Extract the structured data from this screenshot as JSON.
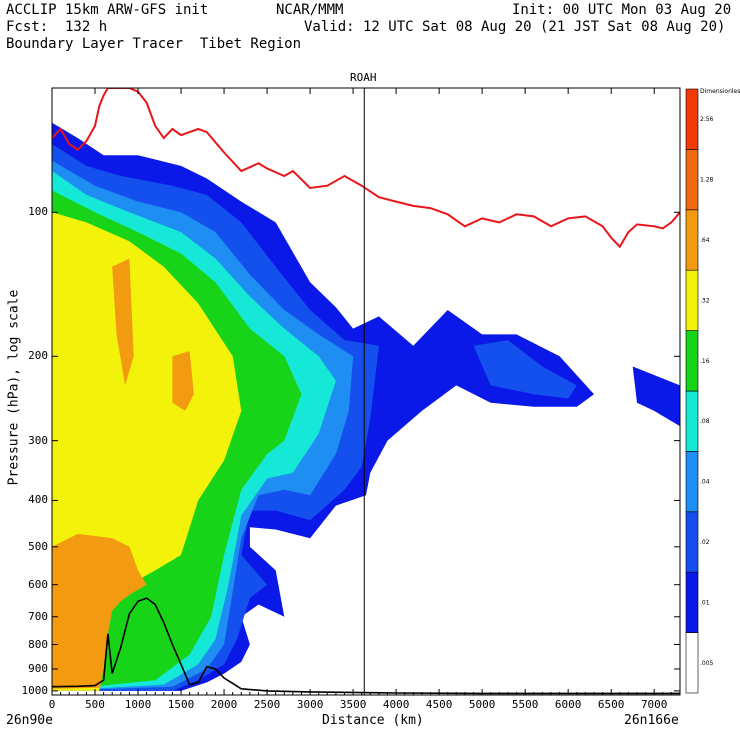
{
  "header": {
    "model": "ACCLIP 15km ARW-GFS init",
    "org": "NCAR/MMM",
    "init": "Init: 00 UTC Mon 03 Aug 20",
    "fcst": "Fcst:  132 h",
    "valid": "Valid: 12 UTC Sat 08 Aug 20 (21 JST Sat 08 Aug 20)",
    "product": "Boundary Layer Tracer  Tibet Region"
  },
  "chart_data": {
    "type": "heatmap",
    "title": "ROAH",
    "xlabel": "Distance (km)",
    "ylabel": "Pressure (hPa), log scale",
    "x_range": [
      0,
      7300
    ],
    "y_range": [
      1020,
      55
    ],
    "y_scale": "log",
    "x_ticks": [
      0,
      500,
      1000,
      1500,
      2000,
      2500,
      3000,
      3500,
      4000,
      4500,
      5000,
      5500,
      6000,
      6500,
      7000
    ],
    "y_ticks": [
      100,
      200,
      300,
      400,
      500,
      600,
      700,
      800,
      900,
      1000
    ],
    "x_start_label": "26n90e",
    "x_end_label": "26n166e",
    "vertical_line_km": 3630,
    "colorbar": {
      "title": "Dimensionless",
      "labels": [
        ".005",
        ".01",
        ".02",
        ".04",
        ".08",
        ".16",
        ".32",
        ".64",
        "1.28",
        "2.56"
      ],
      "colors": [
        "#ffffff",
        "#0a18e8",
        "#1450ee",
        "#1e8ef2",
        "#16e8d8",
        "#18d418",
        "#f2f20a",
        "#f29a10",
        "#f26a10",
        "#f23a06"
      ]
    },
    "tropopause_line": {
      "color": "#e8161a",
      "points": [
        [
          0,
          70
        ],
        [
          100,
          67
        ],
        [
          200,
          72
        ],
        [
          300,
          74
        ],
        [
          400,
          71
        ],
        [
          500,
          66
        ],
        [
          550,
          60
        ],
        [
          600,
          57
        ],
        [
          650,
          55
        ],
        [
          700,
          55
        ],
        [
          800,
          55
        ],
        [
          900,
          55
        ],
        [
          1000,
          56
        ],
        [
          1100,
          59
        ],
        [
          1200,
          66
        ],
        [
          1300,
          70
        ],
        [
          1400,
          67
        ],
        [
          1500,
          69
        ],
        [
          1600,
          68
        ],
        [
          1700,
          67
        ],
        [
          1800,
          68
        ],
        [
          2000,
          75
        ],
        [
          2200,
          82
        ],
        [
          2400,
          79
        ],
        [
          2500,
          81
        ],
        [
          2700,
          84
        ],
        [
          2800,
          82
        ],
        [
          3000,
          89
        ],
        [
          3200,
          88
        ],
        [
          3400,
          84
        ],
        [
          3600,
          88
        ],
        [
          3800,
          93
        ],
        [
          4000,
          95
        ],
        [
          4200,
          97
        ],
        [
          4400,
          98
        ],
        [
          4600,
          101
        ],
        [
          4800,
          107
        ],
        [
          5000,
          103
        ],
        [
          5200,
          105
        ],
        [
          5400,
          101
        ],
        [
          5600,
          102
        ],
        [
          5800,
          107
        ],
        [
          6000,
          103
        ],
        [
          6200,
          102
        ],
        [
          6400,
          107
        ],
        [
          6500,
          113
        ],
        [
          6600,
          118
        ],
        [
          6700,
          110
        ],
        [
          6800,
          106
        ],
        [
          7000,
          107
        ],
        [
          7100,
          108
        ],
        [
          7200,
          105
        ],
        [
          7300,
          100
        ]
      ]
    },
    "terrain_line": {
      "color": "#000000",
      "points": [
        [
          0,
          980
        ],
        [
          300,
          978
        ],
        [
          500,
          975
        ],
        [
          600,
          950
        ],
        [
          650,
          760
        ],
        [
          700,
          920
        ],
        [
          800,
          810
        ],
        [
          900,
          690
        ],
        [
          1000,
          650
        ],
        [
          1100,
          640
        ],
        [
          1200,
          660
        ],
        [
          1300,
          720
        ],
        [
          1400,
          800
        ],
        [
          1500,
          880
        ],
        [
          1600,
          970
        ],
        [
          1700,
          960
        ],
        [
          1800,
          890
        ],
        [
          1900,
          900
        ],
        [
          2000,
          940
        ],
        [
          2200,
          990
        ],
        [
          2500,
          1000
        ],
        [
          3000,
          1005
        ],
        [
          4000,
          1010
        ],
        [
          5000,
          1012
        ],
        [
          6000,
          1012
        ],
        [
          7300,
          1012
        ]
      ]
    },
    "tracer_regions": [
      {
        "level": 1,
        "pts": [
          [
            0,
            1000
          ],
          [
            0,
            65
          ],
          [
            300,
            70
          ],
          [
            600,
            76
          ],
          [
            1000,
            76
          ],
          [
            1500,
            80
          ],
          [
            1800,
            85
          ],
          [
            2200,
            95
          ],
          [
            2600,
            105
          ],
          [
            3000,
            140
          ],
          [
            3300,
            158
          ],
          [
            3500,
            175
          ],
          [
            3800,
            165
          ],
          [
            4200,
            190
          ],
          [
            4600,
            160
          ],
          [
            5000,
            180
          ],
          [
            5400,
            180
          ],
          [
            5900,
            200
          ],
          [
            6300,
            240
          ],
          [
            6100,
            255
          ],
          [
            5600,
            255
          ],
          [
            5100,
            250
          ],
          [
            4700,
            230
          ],
          [
            4300,
            260
          ],
          [
            3900,
            300
          ],
          [
            3700,
            350
          ],
          [
            3650,
            390
          ],
          [
            3300,
            410
          ],
          [
            3000,
            480
          ],
          [
            2600,
            460
          ],
          [
            2300,
            455
          ],
          [
            2300,
            500
          ],
          [
            2600,
            560
          ],
          [
            2700,
            700
          ],
          [
            2400,
            660
          ],
          [
            2200,
            700
          ],
          [
            2300,
            800
          ],
          [
            2200,
            870
          ],
          [
            2000,
            920
          ],
          [
            1800,
            960
          ],
          [
            1500,
            1000
          ]
        ]
      },
      {
        "level": 1,
        "pts": [
          [
            6750,
            210
          ],
          [
            7300,
            230
          ],
          [
            7300,
            280
          ],
          [
            7000,
            260
          ],
          [
            6800,
            250
          ]
        ]
      },
      {
        "level": 2,
        "pts": [
          [
            0,
            1000
          ],
          [
            0,
            72
          ],
          [
            400,
            80
          ],
          [
            800,
            84
          ],
          [
            1400,
            88
          ],
          [
            1800,
            92
          ],
          [
            2200,
            105
          ],
          [
            2600,
            130
          ],
          [
            3000,
            160
          ],
          [
            3400,
            185
          ],
          [
            3800,
            190
          ],
          [
            3700,
            270
          ],
          [
            3600,
            340
          ],
          [
            3400,
            380
          ],
          [
            3000,
            440
          ],
          [
            2600,
            420
          ],
          [
            2300,
            420
          ],
          [
            2200,
            520
          ],
          [
            2500,
            600
          ],
          [
            2300,
            640
          ],
          [
            2150,
            780
          ],
          [
            2000,
            880
          ],
          [
            1700,
            950
          ],
          [
            1400,
            1000
          ]
        ]
      },
      {
        "level": 2,
        "pts": [
          [
            4900,
            190
          ],
          [
            5300,
            185
          ],
          [
            5700,
            210
          ],
          [
            6100,
            230
          ],
          [
            6000,
            245
          ],
          [
            5600,
            240
          ],
          [
            5100,
            230
          ]
        ]
      },
      {
        "level": 3,
        "pts": [
          [
            0,
            1000
          ],
          [
            0,
            78
          ],
          [
            500,
            88
          ],
          [
            1000,
            95
          ],
          [
            1500,
            100
          ],
          [
            1900,
            110
          ],
          [
            2300,
            135
          ],
          [
            2700,
            160
          ],
          [
            3100,
            180
          ],
          [
            3500,
            200
          ],
          [
            3450,
            260
          ],
          [
            3300,
            320
          ],
          [
            3000,
            390
          ],
          [
            2700,
            380
          ],
          [
            2400,
            390
          ],
          [
            2200,
            480
          ],
          [
            2100,
            620
          ],
          [
            2000,
            800
          ],
          [
            1800,
            900
          ],
          [
            1400,
            980
          ]
        ]
      },
      {
        "level": 4,
        "pts": [
          [
            0,
            1000
          ],
          [
            0,
            82
          ],
          [
            400,
            92
          ],
          [
            900,
            100
          ],
          [
            1500,
            110
          ],
          [
            1900,
            125
          ],
          [
            2300,
            150
          ],
          [
            2700,
            175
          ],
          [
            3100,
            200
          ],
          [
            3300,
            225
          ],
          [
            3100,
            290
          ],
          [
            2800,
            350
          ],
          [
            2500,
            360
          ],
          [
            2200,
            430
          ],
          [
            2050,
            600
          ],
          [
            1900,
            780
          ],
          [
            1700,
            880
          ],
          [
            1300,
            970
          ]
        ]
      },
      {
        "level": 5,
        "pts": [
          [
            0,
            1000
          ],
          [
            0,
            90
          ],
          [
            500,
            100
          ],
          [
            1000,
            110
          ],
          [
            1500,
            122
          ],
          [
            1900,
            140
          ],
          [
            2300,
            175
          ],
          [
            2700,
            200
          ],
          [
            2900,
            240
          ],
          [
            2700,
            300
          ],
          [
            2500,
            320
          ],
          [
            2200,
            380
          ],
          [
            2000,
            520
          ],
          [
            1850,
            700
          ],
          [
            1600,
            840
          ],
          [
            1200,
            950
          ]
        ]
      },
      {
        "level": 6,
        "pts": [
          [
            0,
            1000
          ],
          [
            0,
            100
          ],
          [
            400,
            105
          ],
          [
            900,
            115
          ],
          [
            1300,
            130
          ],
          [
            1700,
            155
          ],
          [
            2100,
            200
          ],
          [
            2200,
            260
          ],
          [
            2000,
            330
          ],
          [
            1700,
            400
          ],
          [
            1500,
            520
          ],
          [
            1200,
            560
          ],
          [
            900,
            600
          ],
          [
            700,
            650
          ],
          [
            600,
            800
          ],
          [
            550,
            1000
          ]
        ]
      },
      {
        "level": 7,
        "pts": [
          [
            0,
            990
          ],
          [
            0,
            500
          ],
          [
            300,
            470
          ],
          [
            700,
            480
          ],
          [
            900,
            500
          ],
          [
            1000,
            560
          ],
          [
            1100,
            600
          ],
          [
            900,
            630
          ],
          [
            800,
            650
          ],
          [
            700,
            680
          ],
          [
            650,
            760
          ],
          [
            600,
            900
          ],
          [
            560,
            985
          ]
        ]
      },
      {
        "level": 7,
        "pts": [
          [
            1400,
            200
          ],
          [
            1600,
            195
          ],
          [
            1650,
            240
          ],
          [
            1550,
            260
          ],
          [
            1400,
            250
          ]
        ]
      },
      {
        "level": 7,
        "pts": [
          [
            700,
            130
          ],
          [
            900,
            125
          ],
          [
            950,
            200
          ],
          [
            850,
            230
          ],
          [
            750,
            180
          ]
        ]
      }
    ]
  }
}
